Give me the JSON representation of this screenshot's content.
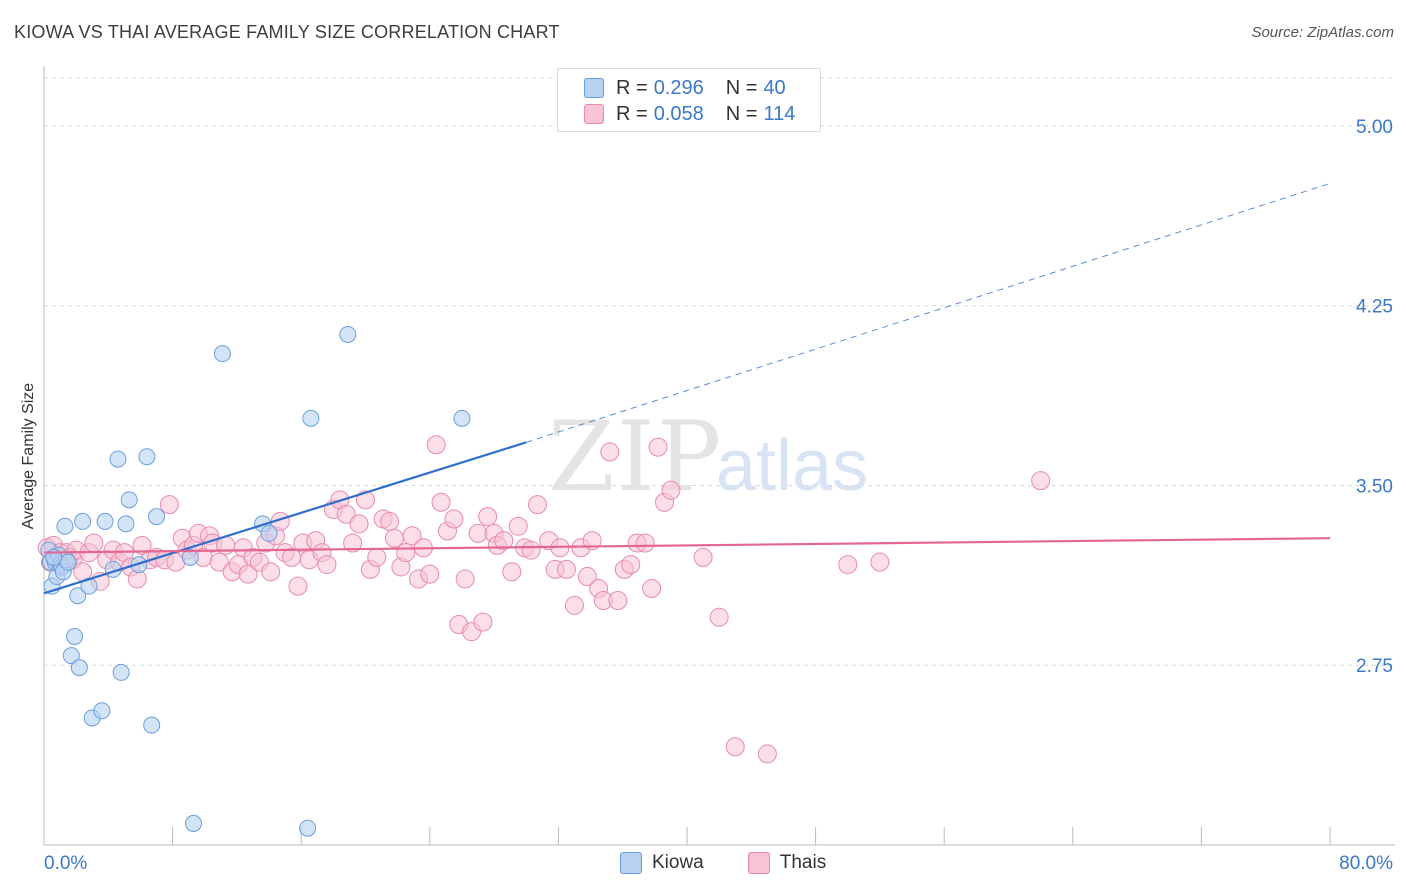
{
  "header": {
    "title": "KIOWA VS THAI AVERAGE FAMILY SIZE CORRELATION CHART",
    "source": "Source: ZipAtlas.com"
  },
  "legend_top": {
    "rows": [
      {
        "r_label": "R =",
        "r_value": "0.296",
        "n_label": "N =",
        "n_value": "40"
      },
      {
        "r_label": "R =",
        "r_value": "0.058",
        "n_label": "N =",
        "n_value": "114"
      }
    ]
  },
  "legend_bottom": {
    "items": [
      "Kiowa",
      "Thais"
    ]
  },
  "watermark": {
    "zip": "ZIP",
    "atlas": "atlas"
  },
  "colors": {
    "kiowa_fill": "#b8d2f2",
    "kiowa_stroke": "#6a9fdc",
    "kiowa_line": "#2f6fcc",
    "thai_fill": "#f7c3d5",
    "thai_stroke": "#e88aac",
    "thai_line": "#e4678f",
    "tick_label": "#3a78c9",
    "grid": "#d9d9d9"
  },
  "chart_data": {
    "type": "scatter",
    "title": "KIOWA VS THAI AVERAGE FAMILY SIZE CORRELATION CHART",
    "xlabel": "",
    "ylabel": "Average Family Size",
    "xlim": [
      0,
      80
    ],
    "ylim": [
      2.0,
      5.2
    ],
    "x_tick_labels": [
      "0.0%",
      "80.0%"
    ],
    "y_ticks": [
      2.75,
      3.5,
      4.25,
      5.0
    ],
    "y_tick_labels": [
      "2.75",
      "3.50",
      "4.25",
      "5.00"
    ],
    "grid": true,
    "legend_position": "top-center",
    "series": [
      {
        "name": "Kiowa",
        "r": 0.296,
        "n": 40,
        "trend": {
          "x0": 0,
          "y0": 3.05,
          "x1": 30,
          "y1": 3.68,
          "dashed_to_x": 80,
          "dashed_to_y": 4.76
        },
        "points": [
          [
            0.3,
            3.23
          ],
          [
            0.4,
            3.18
          ],
          [
            0.5,
            3.08
          ],
          [
            0.7,
            3.18
          ],
          [
            0.8,
            3.12
          ],
          [
            0.9,
            3.21
          ],
          [
            1.0,
            3.17
          ],
          [
            1.1,
            3.16
          ],
          [
            1.2,
            3.14
          ],
          [
            1.3,
            3.33
          ],
          [
            1.4,
            3.19
          ],
          [
            1.5,
            3.18
          ],
          [
            1.7,
            2.79
          ],
          [
            1.9,
            2.87
          ],
          [
            2.1,
            3.04
          ],
          [
            2.2,
            2.74
          ],
          [
            2.4,
            3.35
          ],
          [
            2.8,
            3.08
          ],
          [
            3.0,
            2.53
          ],
          [
            3.6,
            2.56
          ],
          [
            3.8,
            3.35
          ],
          [
            4.3,
            3.15
          ],
          [
            4.6,
            3.61
          ],
          [
            4.8,
            2.72
          ],
          [
            5.1,
            3.34
          ],
          [
            5.3,
            3.44
          ],
          [
            5.9,
            3.17
          ],
          [
            6.4,
            3.62
          ],
          [
            6.7,
            2.5
          ],
          [
            7.0,
            3.37
          ],
          [
            9.1,
            3.2
          ],
          [
            9.3,
            2.09
          ],
          [
            11.1,
            4.05
          ],
          [
            13.6,
            3.34
          ],
          [
            14.0,
            3.3
          ],
          [
            16.4,
            2.07
          ],
          [
            16.6,
            3.78
          ],
          [
            18.9,
            4.13
          ],
          [
            26.0,
            3.78
          ],
          [
            0.6,
            3.2
          ]
        ]
      },
      {
        "name": "Thais",
        "r": 0.058,
        "n": 114,
        "trend": {
          "x0": 0,
          "y0": 3.22,
          "x1": 80,
          "y1": 3.28
        },
        "points": [
          [
            0.2,
            3.24
          ],
          [
            0.4,
            3.18
          ],
          [
            0.6,
            3.25
          ],
          [
            0.8,
            3.2
          ],
          [
            1.0,
            3.22
          ],
          [
            1.2,
            3.17
          ],
          [
            1.4,
            3.22
          ],
          [
            1.6,
            3.2
          ],
          [
            1.8,
            3.19
          ],
          [
            2.0,
            3.23
          ],
          [
            2.4,
            3.14
          ],
          [
            2.8,
            3.22
          ],
          [
            3.1,
            3.26
          ],
          [
            3.5,
            3.1
          ],
          [
            3.9,
            3.19
          ],
          [
            4.3,
            3.23
          ],
          [
            4.7,
            3.18
          ],
          [
            5.0,
            3.22
          ],
          [
            5.4,
            3.16
          ],
          [
            5.8,
            3.11
          ],
          [
            6.1,
            3.25
          ],
          [
            6.6,
            3.19
          ],
          [
            7.0,
            3.2
          ],
          [
            7.5,
            3.19
          ],
          [
            7.8,
            3.42
          ],
          [
            8.2,
            3.18
          ],
          [
            8.6,
            3.28
          ],
          [
            8.9,
            3.23
          ],
          [
            9.3,
            3.25
          ],
          [
            9.6,
            3.3
          ],
          [
            9.9,
            3.2
          ],
          [
            10.3,
            3.29
          ],
          [
            10.5,
            3.26
          ],
          [
            10.9,
            3.18
          ],
          [
            11.3,
            3.25
          ],
          [
            11.7,
            3.14
          ],
          [
            12.1,
            3.17
          ],
          [
            12.4,
            3.24
          ],
          [
            12.7,
            3.13
          ],
          [
            13.0,
            3.2
          ],
          [
            13.4,
            3.18
          ],
          [
            13.8,
            3.26
          ],
          [
            14.1,
            3.14
          ],
          [
            14.4,
            3.29
          ],
          [
            14.7,
            3.35
          ],
          [
            15.0,
            3.22
          ],
          [
            15.4,
            3.2
          ],
          [
            15.8,
            3.08
          ],
          [
            16.1,
            3.26
          ],
          [
            16.5,
            3.19
          ],
          [
            16.9,
            3.27
          ],
          [
            17.3,
            3.22
          ],
          [
            17.6,
            3.17
          ],
          [
            18.0,
            3.4
          ],
          [
            18.4,
            3.44
          ],
          [
            18.8,
            3.38
          ],
          [
            19.2,
            3.26
          ],
          [
            19.6,
            3.34
          ],
          [
            20.0,
            3.44
          ],
          [
            20.3,
            3.15
          ],
          [
            20.7,
            3.2
          ],
          [
            21.1,
            3.36
          ],
          [
            21.5,
            3.35
          ],
          [
            21.8,
            3.28
          ],
          [
            22.2,
            3.16
          ],
          [
            22.5,
            3.22
          ],
          [
            22.9,
            3.29
          ],
          [
            23.3,
            3.11
          ],
          [
            23.6,
            3.24
          ],
          [
            24.0,
            3.13
          ],
          [
            24.4,
            3.67
          ],
          [
            24.7,
            3.43
          ],
          [
            25.1,
            3.31
          ],
          [
            25.5,
            3.36
          ],
          [
            25.8,
            2.92
          ],
          [
            26.2,
            3.11
          ],
          [
            26.6,
            2.89
          ],
          [
            27.0,
            3.3
          ],
          [
            27.3,
            2.93
          ],
          [
            27.6,
            3.37
          ],
          [
            28.0,
            3.3
          ],
          [
            28.2,
            3.25
          ],
          [
            28.6,
            3.27
          ],
          [
            29.1,
            3.14
          ],
          [
            29.5,
            3.33
          ],
          [
            29.9,
            3.24
          ],
          [
            30.3,
            3.23
          ],
          [
            30.7,
            3.42
          ],
          [
            31.4,
            3.27
          ],
          [
            31.8,
            3.15
          ],
          [
            32.1,
            3.24
          ],
          [
            32.5,
            3.15
          ],
          [
            33.0,
            3.0
          ],
          [
            33.4,
            3.24
          ],
          [
            33.8,
            3.12
          ],
          [
            34.1,
            3.27
          ],
          [
            34.5,
            3.07
          ],
          [
            34.8,
            3.02
          ],
          [
            35.2,
            3.64
          ],
          [
            35.7,
            3.02
          ],
          [
            36.1,
            3.15
          ],
          [
            36.5,
            3.17
          ],
          [
            36.9,
            3.26
          ],
          [
            37.4,
            3.26
          ],
          [
            37.8,
            3.07
          ],
          [
            38.2,
            3.66
          ],
          [
            38.6,
            3.43
          ],
          [
            39.0,
            3.48
          ],
          [
            41.0,
            3.2
          ],
          [
            42.0,
            2.95
          ],
          [
            43.0,
            2.41
          ],
          [
            45.0,
            2.38
          ],
          [
            50.0,
            3.17
          ],
          [
            52.0,
            3.18
          ],
          [
            62.0,
            3.52
          ]
        ]
      }
    ]
  }
}
